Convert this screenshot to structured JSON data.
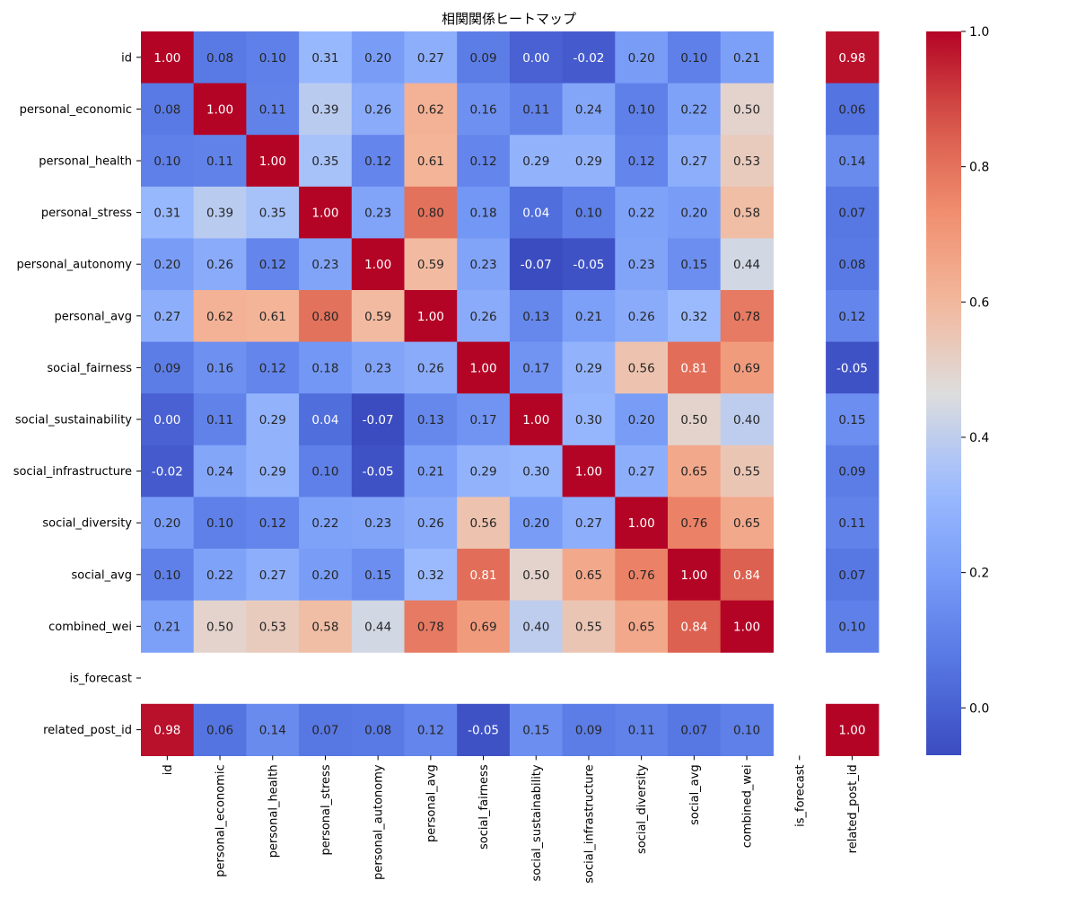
{
  "chart_data": {
    "type": "heatmap",
    "title": "相関関係ヒートマップ",
    "xlabel": "",
    "ylabel": "",
    "row_labels": [
      "id",
      "personal_economic",
      "personal_health",
      "personal_stress",
      "personal_autonomy",
      "personal_avg",
      "social_fairness",
      "social_sustainability",
      "social_infrastructure",
      "social_diversity",
      "social_avg",
      "combined_wei",
      "is_forecast",
      "related_post_id"
    ],
    "col_labels": [
      "id",
      "personal_economic",
      "personal_health",
      "personal_stress",
      "personal_autonomy",
      "personal_avg",
      "social_fairness",
      "social_sustainability",
      "social_infrastructure",
      "social_diversity",
      "social_avg",
      "combined_wei",
      "is_forecast",
      "related_post_id"
    ],
    "values": [
      [
        1.0,
        0.08,
        0.1,
        0.31,
        0.2,
        0.27,
        0.09,
        0.0,
        -0.02,
        0.2,
        0.1,
        0.21,
        null,
        0.98
      ],
      [
        0.08,
        1.0,
        0.11,
        0.39,
        0.26,
        0.62,
        0.16,
        0.11,
        0.24,
        0.1,
        0.22,
        0.5,
        null,
        0.06
      ],
      [
        0.1,
        0.11,
        1.0,
        0.35,
        0.12,
        0.61,
        0.12,
        0.29,
        0.29,
        0.12,
        0.27,
        0.53,
        null,
        0.14
      ],
      [
        0.31,
        0.39,
        0.35,
        1.0,
        0.23,
        0.8,
        0.18,
        0.04,
        0.1,
        0.22,
        0.2,
        0.58,
        null,
        0.07
      ],
      [
        0.2,
        0.26,
        0.12,
        0.23,
        1.0,
        0.59,
        0.23,
        -0.07,
        -0.05,
        0.23,
        0.15,
        0.44,
        null,
        0.08
      ],
      [
        0.27,
        0.62,
        0.61,
        0.8,
        0.59,
        1.0,
        0.26,
        0.13,
        0.21,
        0.26,
        0.32,
        0.78,
        null,
        0.12
      ],
      [
        0.09,
        0.16,
        0.12,
        0.18,
        0.23,
        0.26,
        1.0,
        0.17,
        0.29,
        0.56,
        0.81,
        0.69,
        null,
        -0.05
      ],
      [
        0.0,
        0.11,
        0.29,
        0.04,
        -0.07,
        0.13,
        0.17,
        1.0,
        0.3,
        0.2,
        0.5,
        0.4,
        null,
        0.15
      ],
      [
        -0.02,
        0.24,
        0.29,
        0.1,
        -0.05,
        0.21,
        0.29,
        0.3,
        1.0,
        0.27,
        0.65,
        0.55,
        null,
        0.09
      ],
      [
        0.2,
        0.1,
        0.12,
        0.22,
        0.23,
        0.26,
        0.56,
        0.2,
        0.27,
        1.0,
        0.76,
        0.65,
        null,
        0.11
      ],
      [
        0.1,
        0.22,
        0.27,
        0.2,
        0.15,
        0.32,
        0.81,
        0.5,
        0.65,
        0.76,
        1.0,
        0.84,
        null,
        0.07
      ],
      [
        0.21,
        0.5,
        0.53,
        0.58,
        0.44,
        0.78,
        0.69,
        0.4,
        0.55,
        0.65,
        0.84,
        1.0,
        null,
        0.1
      ],
      [
        null,
        null,
        null,
        null,
        null,
        null,
        null,
        null,
        null,
        null,
        null,
        null,
        null,
        null
      ],
      [
        0.98,
        0.06,
        0.14,
        0.07,
        0.08,
        0.12,
        -0.05,
        0.15,
        0.09,
        0.11,
        0.07,
        0.1,
        null,
        1.0
      ]
    ],
    "colormap": "coolwarm",
    "vmin": -0.07,
    "vmax": 1.0,
    "colorbar_ticks": [
      0.0,
      0.2,
      0.4,
      0.6,
      0.8,
      1.0
    ],
    "colorbar_tick_labels": [
      "0.0",
      "0.2",
      "0.4",
      "0.6",
      "0.8",
      "1.0"
    ],
    "value_format": "2 decimals",
    "grid": false,
    "colorbar_position": "right"
  }
}
